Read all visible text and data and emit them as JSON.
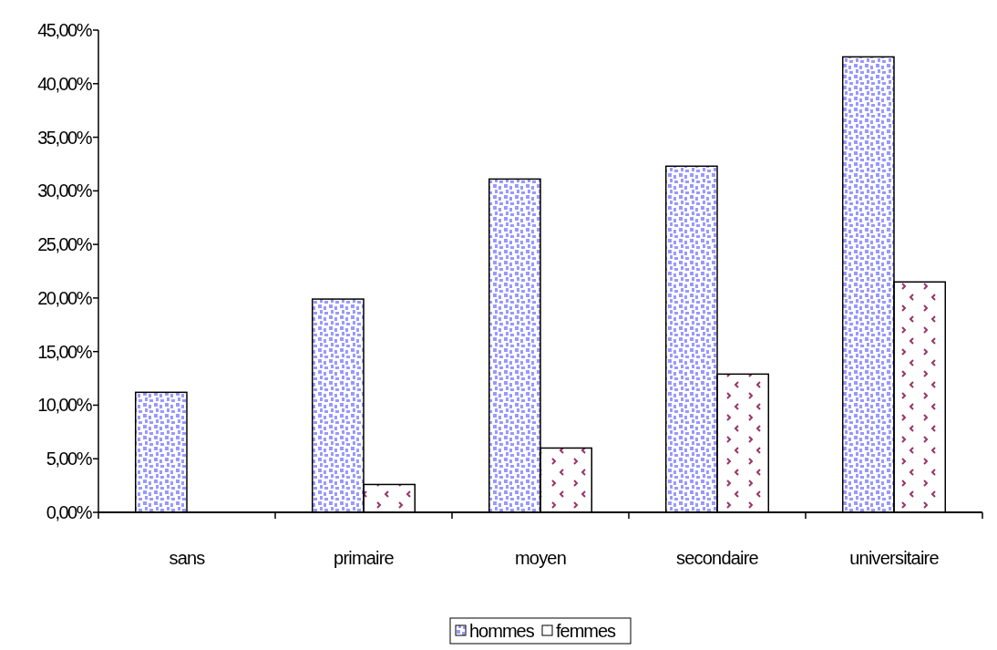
{
  "chart_data": {
    "type": "bar",
    "categories": [
      "sans",
      "primaire",
      "moyen",
      "secondaire",
      "universitaire"
    ],
    "series": [
      {
        "name": "hommes",
        "color": "#9999ff",
        "values": [
          11.2,
          19.9,
          31.1,
          32.3,
          42.5
        ]
      },
      {
        "name": "femmes",
        "color": "#993366",
        "values": [
          0,
          2.6,
          6.0,
          12.9,
          21.5
        ]
      }
    ],
    "ylim": [
      0,
      45
    ],
    "yticks": [
      {
        "value": 0,
        "label": "0,00%"
      },
      {
        "value": 5,
        "label": "5,00%"
      },
      {
        "value": 10,
        "label": "10,00%"
      },
      {
        "value": 15,
        "label": "15,00%"
      },
      {
        "value": 20,
        "label": "20,00%"
      },
      {
        "value": 25,
        "label": "25,00%"
      },
      {
        "value": 30,
        "label": "30,00%"
      },
      {
        "value": 35,
        "label": "35,00%"
      },
      {
        "value": 40,
        "label": "40,00%"
      },
      {
        "value": 45,
        "label": "45,00%"
      }
    ],
    "legend": "bottom",
    "grid": false
  }
}
